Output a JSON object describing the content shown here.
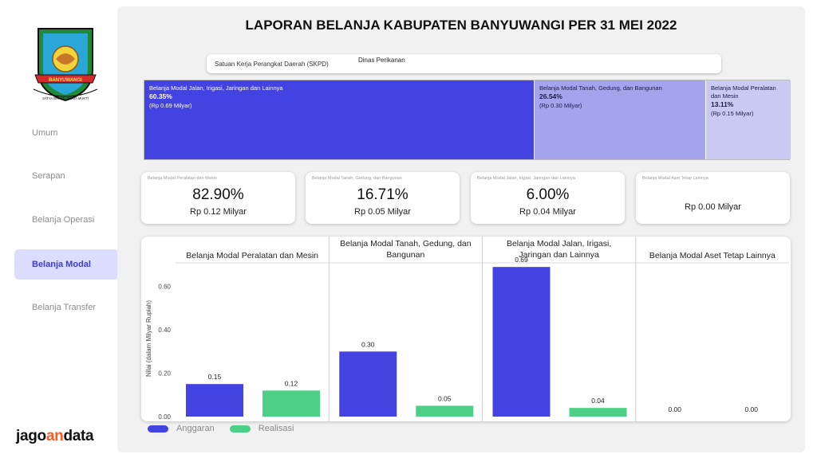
{
  "sidebar": {
    "logo": {
      "banner": "BANYUWANGI",
      "motto": "SATYA BHAKTI PRAJA MUKTI"
    },
    "items": [
      {
        "label": "Umum"
      },
      {
        "label": "Serapan"
      },
      {
        "label": "Belanja Operasi"
      },
      {
        "label": "Belanja Modal"
      },
      {
        "label": "Belanja Transfer"
      }
    ],
    "active_index": 3,
    "brand": {
      "part1": "jago",
      "part2": "an",
      "part3": "data"
    }
  },
  "header": {
    "title": "LAPORAN BELANJA KABUPATEN BANYUWANGI PER 31 MEI 2022"
  },
  "filter": {
    "label": "Satuan Kerja Perangkat Daerah (SKPD)",
    "value": "Dinas Perikanan"
  },
  "treemap": [
    {
      "name": "Belanja Modal Jalan, Irigasi, Jaringan dan Lainnya",
      "pct": "60.35%",
      "amount": "(Rp 0.69 Milyar)"
    },
    {
      "name": "Belanja Modal Tanah, Gedung, dan Bangunan",
      "pct": "26.54%",
      "amount": "(Rp 0.30 Milyar)"
    },
    {
      "name": "Belanja Modal Peralatan dan Mesin",
      "pct": "13.11%",
      "amount": "(Rp 0.15 Milyar)"
    }
  ],
  "kpis": [
    {
      "title": "Belanja Modal Peralatan dan Mesin",
      "pct": "82.90%",
      "amount": "Rp 0.12 Milyar"
    },
    {
      "title": "Belanja Modal Tanah, Gedung, dan Bangunan",
      "pct": "16.71%",
      "amount": "Rp 0.05 Milyar"
    },
    {
      "title": "Belanja Modal Jalan, Irigasi, Jaringan dan Lainnya",
      "pct": "6.00%",
      "amount": "Rp 0.04 Milyar"
    },
    {
      "title": "Belanja Modal Aset Tetap Lainnya",
      "pct": "",
      "amount": "Rp 0.00 Milyar"
    }
  ],
  "colors": {
    "anggaran": "#4343e2",
    "realisasi": "#4ccf86",
    "accent": "#3b3bd6"
  },
  "chart_data": {
    "type": "bar",
    "ylabel": "Nilai (dalam Milyar Rupiah)",
    "ylim": [
      0,
      0.72
    ],
    "yticks": [
      "0.00",
      "0.20",
      "0.40",
      "0.60"
    ],
    "panels": [
      {
        "title_lines": [
          "Belanja Modal Peralatan dan Mesin"
        ],
        "anggaran": 0.15,
        "realisasi": 0.12,
        "labels": [
          "0.15",
          "0.12"
        ]
      },
      {
        "title_lines": [
          "Belanja Modal Tanah, Gedung, dan",
          "Bangunan"
        ],
        "anggaran": 0.3,
        "realisasi": 0.05,
        "labels": [
          "0.30",
          "0.05"
        ]
      },
      {
        "title_lines": [
          "Belanja Modal Jalan, Irigasi,",
          "Jaringan dan Lainnya"
        ],
        "anggaran": 0.69,
        "realisasi": 0.04,
        "labels": [
          "0.69",
          "0.04"
        ]
      },
      {
        "title_lines": [
          "Belanja Modal Aset Tetap Lainnya"
        ],
        "anggaran": 0.0,
        "realisasi": 0.0,
        "labels": [
          "0.00",
          "0.00"
        ]
      }
    ],
    "series": [
      {
        "name": "Anggaran"
      },
      {
        "name": "Realisasi"
      }
    ],
    "legend": "bottom-left"
  }
}
